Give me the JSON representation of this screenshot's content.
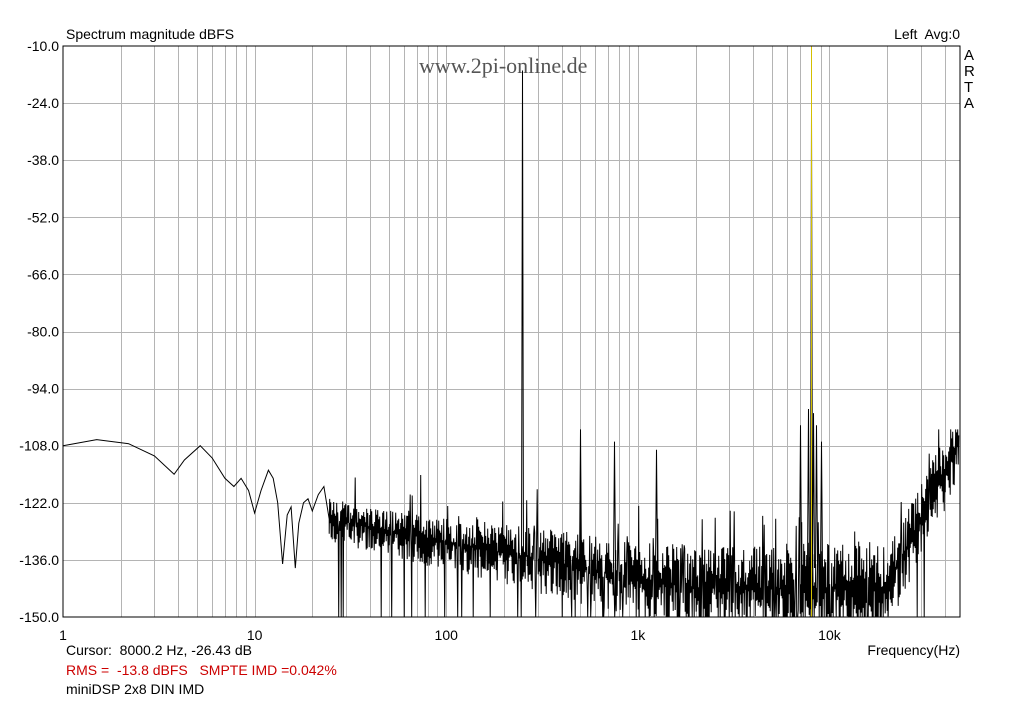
{
  "chart_data": {
    "type": "line",
    "title": "Spectrum magnitude dBFS",
    "channel_info": "Left  Avg:0",
    "brand": "A R T A",
    "watermark": "www.2pi-online.de",
    "xlabel": "Frequency(Hz)",
    "ylabel": "",
    "x_scale": "log",
    "xlim": [
      1,
      48000
    ],
    "ylim": [
      -150,
      -10
    ],
    "y_ticks": [
      "-10.0",
      "-24.0",
      "-38.0",
      "-52.0",
      "-66.0",
      "-80.0",
      "-94.0",
      "-108.0",
      "-122.0",
      "-136.0",
      "-150.0"
    ],
    "x_tick_labels": [
      {
        "value": 1,
        "label": "1"
      },
      {
        "value": 10,
        "label": "10"
      },
      {
        "value": 100,
        "label": "100"
      },
      {
        "value": 1000,
        "label": "1k"
      },
      {
        "value": 10000,
        "label": "10k"
      }
    ],
    "grid": true,
    "cursor": {
      "x": 8000.2,
      "y": -26.43,
      "color": "#d4c000"
    },
    "series": [
      {
        "color": "#000000",
        "low_freq_trace": [
          [
            1,
            -108
          ],
          [
            1.5,
            -106.5
          ],
          [
            2.2,
            -107.5
          ],
          [
            3,
            -110.5
          ],
          [
            3.8,
            -115
          ],
          [
            4.3,
            -111.5
          ],
          [
            5.2,
            -108
          ],
          [
            6,
            -111
          ],
          [
            7,
            -116
          ],
          [
            7.8,
            -118
          ],
          [
            8.5,
            -116
          ],
          [
            9.3,
            -119
          ],
          [
            10,
            -124.5
          ],
          [
            10.8,
            -119
          ],
          [
            11.8,
            -114
          ],
          [
            12.5,
            -116
          ],
          [
            13.2,
            -122
          ],
          [
            14,
            -137
          ],
          [
            14.8,
            -125
          ],
          [
            15.5,
            -123
          ],
          [
            16.3,
            -138
          ],
          [
            17,
            -127
          ],
          [
            18,
            -122
          ],
          [
            19,
            -121
          ],
          [
            20,
            -124
          ],
          [
            21.5,
            -120
          ],
          [
            23,
            -118
          ],
          [
            24.5,
            -126
          ]
        ],
        "spikes": [
          {
            "x": 250,
            "y": -16
          },
          {
            "x": 500,
            "y": -104
          },
          {
            "x": 750,
            "y": -107
          },
          {
            "x": 1250,
            "y": -109
          },
          {
            "x": 7000,
            "y": -103
          },
          {
            "x": 7750,
            "y": -99
          },
          {
            "x": 8000,
            "y": -26.4
          },
          {
            "x": 8250,
            "y": -100
          },
          {
            "x": 8500,
            "y": -103
          },
          {
            "x": 9000,
            "y": -107
          }
        ]
      }
    ]
  },
  "status": {
    "cursor_text": "Cursor:  8000.2 Hz, -26.43 dB",
    "rms_text": "RMS =  -13.8 dBFS   SMPTE IMD =0.042%",
    "device_text": "miniDSP 2x8 DIN IMD"
  }
}
